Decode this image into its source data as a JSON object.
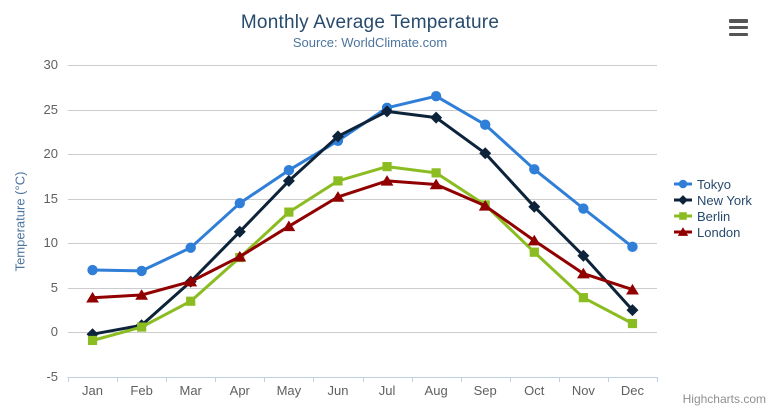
{
  "header": {
    "title": "Monthly Average Temperature",
    "subtitle": "Source: WorldClimate.com"
  },
  "chart_data": {
    "type": "line",
    "title": "Monthly Average Temperature",
    "subtitle": "Source: WorldClimate.com",
    "categories": [
      "Jan",
      "Feb",
      "Mar",
      "Apr",
      "May",
      "Jun",
      "Jul",
      "Aug",
      "Sep",
      "Oct",
      "Nov",
      "Dec"
    ],
    "series": [
      {
        "name": "Tokyo",
        "color": "#2f7ed8",
        "marker": "circle",
        "values": [
          7.0,
          6.9,
          9.5,
          14.5,
          18.2,
          21.5,
          25.2,
          26.5,
          23.3,
          18.3,
          13.9,
          9.6
        ]
      },
      {
        "name": "New York",
        "color": "#0d233a",
        "marker": "diamond",
        "values": [
          -0.2,
          0.8,
          5.7,
          11.3,
          17.0,
          22.0,
          24.8,
          24.1,
          20.1,
          14.1,
          8.6,
          2.5
        ]
      },
      {
        "name": "Berlin",
        "color": "#8bbc21",
        "marker": "square",
        "values": [
          -0.9,
          0.6,
          3.5,
          8.4,
          13.5,
          17.0,
          18.6,
          17.9,
          14.3,
          9.0,
          3.9,
          1.0
        ]
      },
      {
        "name": "London",
        "color": "#910000",
        "marker": "triangle",
        "values": [
          3.9,
          4.2,
          5.7,
          8.5,
          11.9,
          15.2,
          17.0,
          16.6,
          14.2,
          10.3,
          6.6,
          4.8
        ]
      }
    ],
    "xlabel": "",
    "ylabel": "Temperature (°C)",
    "ylim": [
      -5,
      30
    ],
    "yticks": [
      30,
      25,
      20,
      15,
      10,
      5,
      0,
      -5
    ],
    "grid": true,
    "legend_position": "right"
  },
  "legend": {
    "items": [
      "Tokyo",
      "New York",
      "Berlin",
      "London"
    ]
  },
  "export_menu": {
    "icon": "hamburger"
  },
  "credits": {
    "label": "Highcharts.com"
  },
  "colors": {
    "title": "#274b6d",
    "subtitle": "#4d759e",
    "axis_title": "#4d759e",
    "axis_labels": "#606060",
    "gridline": "#cccccc",
    "axis_line": "#c0d0e0",
    "legend_text": "#274b6d",
    "credits": "#909090",
    "export_icon": "#555555"
  }
}
